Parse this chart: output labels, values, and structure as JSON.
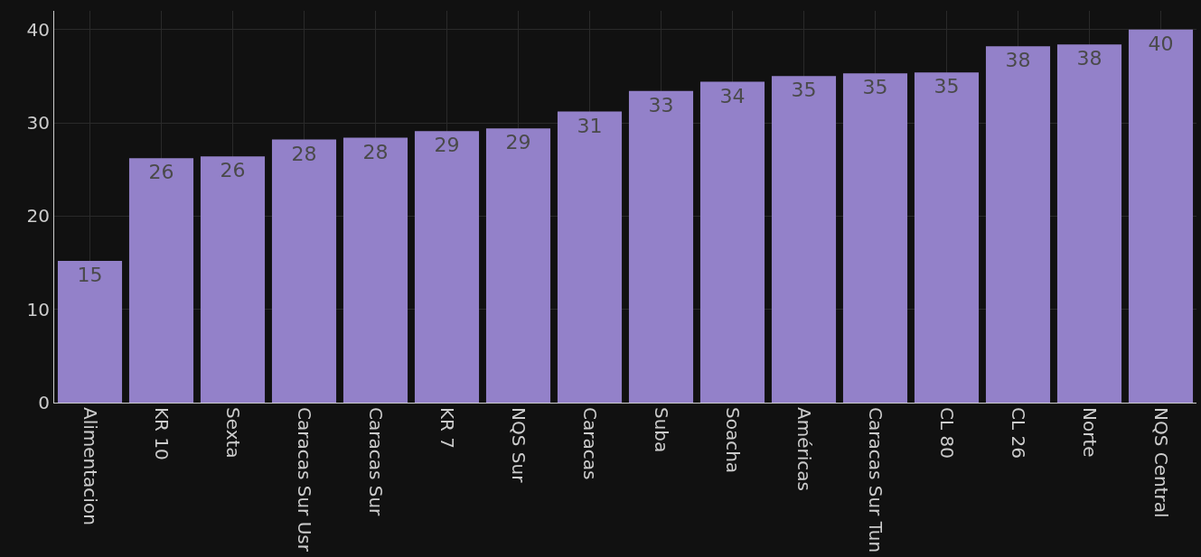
{
  "chart_data": {
    "type": "bar",
    "categories": [
      "Alimentacion",
      "KR 10",
      "Sexta",
      "Caracas Sur Usr",
      "Caracas Sur",
      "KR 7",
      "NQS Sur",
      "Caracas",
      "Suba",
      "Soacha",
      "Américas",
      "Caracas Sur Tun",
      "CL 80",
      "CL 26",
      "Norte",
      "NQS Central"
    ],
    "values": [
      15.2,
      26.2,
      26.4,
      28.2,
      28.4,
      29.1,
      29.4,
      31.2,
      33.4,
      34.4,
      35.0,
      35.3,
      35.4,
      38.2,
      38.4,
      40.0
    ],
    "value_labels": [
      "15",
      "26",
      "26",
      "28",
      "28",
      "29",
      "29",
      "31",
      "33",
      "34",
      "35",
      "35",
      "35",
      "38",
      "38",
      "40"
    ],
    "color": "#9381c9",
    "ylim": [
      0,
      42
    ],
    "yticks": [
      0,
      10,
      20,
      30,
      40
    ],
    "grid": true
  }
}
